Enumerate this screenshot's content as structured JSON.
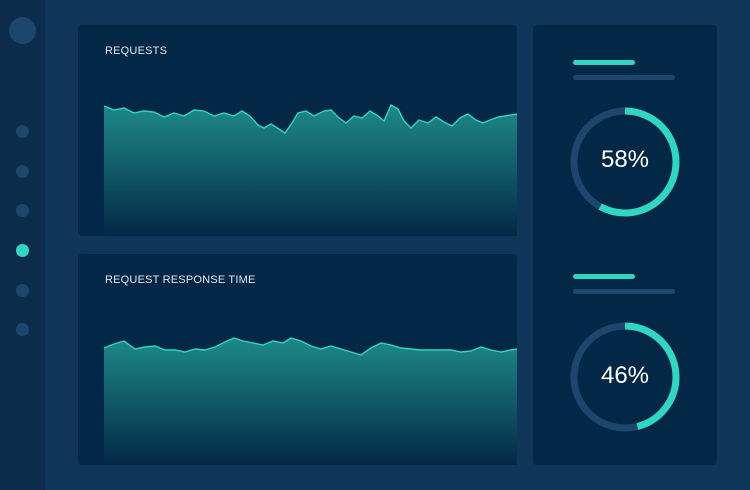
{
  "sidebar": {
    "nav_items": [
      {
        "active": false
      },
      {
        "active": false
      },
      {
        "active": false
      },
      {
        "active": true
      },
      {
        "active": false
      },
      {
        "active": false
      }
    ]
  },
  "panels": {
    "requests": {
      "title": "REQUESTS"
    },
    "response_time": {
      "title": "REQUEST RESPONSE TIME"
    }
  },
  "gauges": [
    {
      "value": 58,
      "label": "58%"
    },
    {
      "value": 46,
      "label": "46%"
    }
  ],
  "colors": {
    "accent": "#2fd7c2",
    "track": "#1d466c",
    "panel": "#032746",
    "background": "#0f3659"
  }
}
